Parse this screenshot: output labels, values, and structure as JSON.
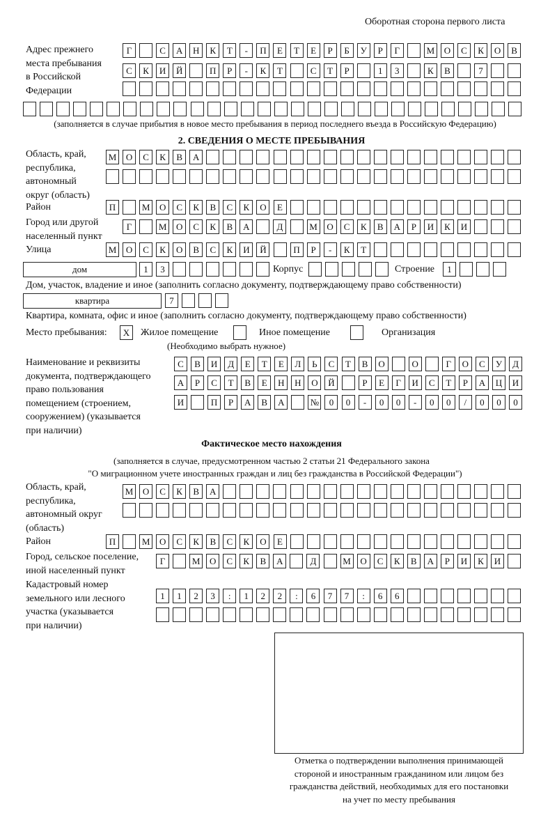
{
  "header": {
    "page_side": "Оборотная сторона первого листа"
  },
  "previous_address": {
    "label": "Адрес прежнего\nместа пребывания\nв Российской\nФедерации",
    "rows": [
      [
        "Г",
        "",
        "С",
        "А",
        "Н",
        "К",
        "Т",
        "-",
        "П",
        "Е",
        "Т",
        "Е",
        "Р",
        "Б",
        "У",
        "Р",
        "Г",
        "",
        "М",
        "О",
        "С",
        "К",
        "О",
        "В"
      ],
      [
        "С",
        "К",
        "И",
        "Й",
        "",
        "П",
        "Р",
        "-",
        "К",
        "Т",
        "",
        "С",
        "Т",
        "Р",
        "",
        "1",
        "3",
        "",
        "К",
        "В",
        "",
        "7",
        "",
        ""
      ],
      [
        "",
        "",
        "",
        "",
        "",
        "",
        "",
        "",
        "",
        "",
        "",
        "",
        "",
        "",
        "",
        "",
        "",
        "",
        "",
        "",
        "",
        "",
        "",
        ""
      ],
      [
        "",
        "",
        "",
        "",
        "",
        "",
        "",
        "",
        "",
        "",
        "",
        "",
        "",
        "",
        "",
        "",
        "",
        "",
        "",
        "",
        "",
        "",
        "",
        "",
        "",
        "",
        "",
        "",
        "",
        ""
      ]
    ],
    "note": "(заполняется в случае прибытия в новое место пребывания в период последнего въезда в Российскую Федерацию)"
  },
  "section2": {
    "title": "2. СВЕДЕНИЯ О МЕСТЕ ПРЕБЫВАНИЯ",
    "region_label": "Область, край,\nреспублика,\nавтономный\nокруг (область)",
    "region_rows": [
      [
        "М",
        "О",
        "С",
        "К",
        "В",
        "А",
        "",
        "",
        "",
        "",
        "",
        "",
        "",
        "",
        "",
        "",
        "",
        "",
        "",
        "",
        "",
        "",
        "",
        "",
        ""
      ],
      [
        "",
        "",
        "",
        "",
        "",
        "",
        "",
        "",
        "",
        "",
        "",
        "",
        "",
        "",
        "",
        "",
        "",
        "",
        "",
        "",
        "",
        "",
        "",
        "",
        ""
      ]
    ],
    "district_label": "Район",
    "district_row": [
      "П",
      "",
      "М",
      "О",
      "С",
      "К",
      "В",
      "С",
      "К",
      "О",
      "Е",
      "",
      "",
      "",
      "",
      "",
      "",
      "",
      "",
      "",
      "",
      "",
      "",
      "",
      ""
    ],
    "city_label": "Город или другой\nнаселенный пункт",
    "city_row": [
      "Г",
      "",
      "М",
      "О",
      "С",
      "К",
      "В",
      "А",
      "",
      "Д",
      "",
      "М",
      "О",
      "С",
      "К",
      "В",
      "А",
      "Р",
      "И",
      "К",
      "И",
      "",
      "",
      ""
    ],
    "street_label": "Улица",
    "street_row": [
      "М",
      "О",
      "С",
      "К",
      "О",
      "В",
      "С",
      "К",
      "И",
      "Й",
      "",
      "П",
      "Р",
      "-",
      "К",
      "Т",
      "",
      "",
      "",
      "",
      "",
      "",
      "",
      "",
      ""
    ],
    "house_type": "дом",
    "house_cells": [
      "1",
      "3",
      "",
      "",
      "",
      "",
      "",
      ""
    ],
    "building_label": "Корпус",
    "building_cells": [
      "",
      "",
      "",
      "",
      ""
    ],
    "structure_label": "Строение",
    "structure_cells": [
      "1",
      "",
      "",
      ""
    ],
    "house_note": "Дом, участок, владение и иное (заполнить согласно документу, подтверждающему право собственности)",
    "apartment_type": "квартира",
    "apartment_cells": [
      "7",
      "",
      "",
      ""
    ],
    "apartment_note": "Квартира, комната, офис и иное (заполнить согласно документу, подтверждающему право собственности)",
    "stay_place_label": "Место пребывания:",
    "options": [
      {
        "label": "Жилое помещение",
        "mark": "X"
      },
      {
        "label": "Иное помещение",
        "mark": ""
      },
      {
        "label": "Организация",
        "mark": ""
      }
    ],
    "choose_note": "(Необходимо выбрать нужное)",
    "doc_label": "Наименование и реквизиты\nдокумента, подтверждающего\nправо пользования\nпомещением (строением,\nсооружением) (указывается\nпри наличии)",
    "doc_rows": [
      [
        "С",
        "В",
        "И",
        "Д",
        "Е",
        "Т",
        "Е",
        "Л",
        "Ь",
        "С",
        "Т",
        "В",
        "О",
        "",
        "О",
        "",
        "Г",
        "О",
        "С",
        "У",
        "Д"
      ],
      [
        "А",
        "Р",
        "С",
        "Т",
        "В",
        "Е",
        "Н",
        "Н",
        "О",
        "Й",
        "",
        "Р",
        "Е",
        "Г",
        "И",
        "С",
        "Т",
        "Р",
        "А",
        "Ц",
        "И"
      ],
      [
        "И",
        "",
        "П",
        "Р",
        "А",
        "В",
        "А",
        "",
        "№",
        "0",
        "0",
        "-",
        "0",
        "0",
        "-",
        "0",
        "0",
        "/",
        "0",
        "0",
        "0"
      ]
    ]
  },
  "actual": {
    "title": "Фактическое место нахождения",
    "note_line1": "(заполняется в случае, предусмотренном частью 2 статьи 21 Федерального закона",
    "note_line2": "\"О миграционном учете иностранных граждан и лиц без гражданства в Российской Федерации\")",
    "region_label": "Область, край,\nреспублика,\nавтономный округ\n(область)",
    "region_rows": [
      [
        "М",
        "О",
        "С",
        "К",
        "В",
        "А",
        "",
        "",
        "",
        "",
        "",
        "",
        "",
        "",
        "",
        "",
        "",
        "",
        "",
        "",
        "",
        "",
        "",
        ""
      ],
      [
        "",
        "",
        "",
        "",
        "",
        "",
        "",
        "",
        "",
        "",
        "",
        "",
        "",
        "",
        "",
        "",
        "",
        "",
        "",
        "",
        "",
        "",
        "",
        ""
      ]
    ],
    "district_label": "Район",
    "district_row": [
      "П",
      "",
      "М",
      "О",
      "С",
      "К",
      "В",
      "С",
      "К",
      "О",
      "Е",
      "",
      "",
      "",
      "",
      "",
      "",
      "",
      "",
      "",
      "",
      "",
      "",
      "",
      ""
    ],
    "city_label": "Город, сельское поселение,\nиной населенный пункт",
    "city_row": [
      "Г",
      "",
      "М",
      "О",
      "С",
      "К",
      "В",
      "А",
      "",
      "Д",
      "",
      "М",
      "О",
      "С",
      "К",
      "В",
      "А",
      "Р",
      "И",
      "К",
      "И",
      ""
    ],
    "cadastre_label": "Кадастровый номер\nземельного или лесного\nучастка (указывается\nпри наличии)",
    "cadastre_rows": [
      [
        "1",
        "1",
        "2",
        "3",
        ":",
        "1",
        "2",
        "2",
        ":",
        "6",
        "7",
        "7",
        ":",
        "6",
        "6",
        "",
        "",
        "",
        "",
        "",
        "",
        ""
      ],
      [
        "",
        "",
        "",
        "",
        "",
        "",
        "",
        "",
        "",
        "",
        "",
        "",
        "",
        "",
        "",
        "",
        "",
        "",
        "",
        "",
        "",
        ""
      ]
    ]
  },
  "confirmation": {
    "caption": "Отметка о подтверждении выполнения принимающей\nстороной и иностранным гражданином или лицом без\nгражданства действий, необходимых для его постановки\nна учет по месту пребывания"
  }
}
